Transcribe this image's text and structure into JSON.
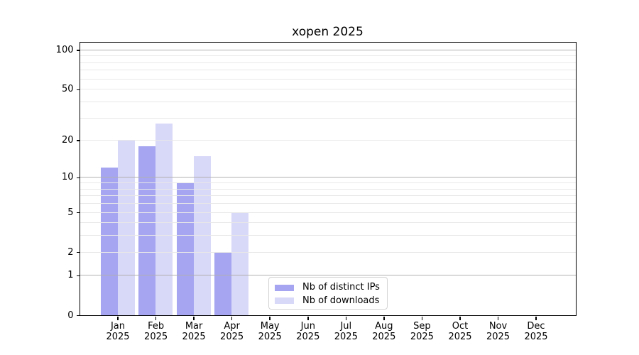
{
  "chart_data": {
    "type": "bar",
    "title": "xopen 2025",
    "categories": [
      "Jan",
      "Feb",
      "Mar",
      "Apr",
      "May",
      "Jun",
      "Jul",
      "Aug",
      "Sep",
      "Oct",
      "Nov",
      "Dec"
    ],
    "x_year_label": "2025",
    "series": [
      {
        "name": "Nb of distinct IPs",
        "color": "#a5a5f1",
        "values": [
          12,
          18,
          9,
          2,
          0,
          0,
          0,
          0,
          0,
          0,
          0,
          0
        ]
      },
      {
        "name": "Nb of downloads",
        "color": "#d8d8f8",
        "values": [
          20,
          27,
          15,
          5,
          0,
          0,
          0,
          0,
          0,
          0,
          0,
          0
        ]
      }
    ],
    "yscale": "log1p",
    "ylim": [
      0,
      115
    ],
    "y_tick_values": [
      0,
      1,
      2,
      5,
      10,
      20,
      50,
      100
    ],
    "y_tick_labels": [
      "0",
      "1",
      "2",
      "5",
      "10",
      "20",
      "50",
      "100"
    ],
    "y_major_grid": [
      1,
      10,
      100
    ],
    "y_minor_grid": [
      2,
      3,
      4,
      5,
      6,
      7,
      8,
      9,
      20,
      30,
      40,
      50,
      60,
      70,
      80,
      90
    ],
    "grid": true,
    "grid_above_bars": true,
    "legend_position": "lower-center",
    "colors": {
      "major_grid": "#b0b0b0",
      "minor_grid": "#e8e8e8",
      "axis": "#000000",
      "text": "#000000",
      "background": "#ffffff",
      "legend_border": "#d4d4d4"
    }
  }
}
